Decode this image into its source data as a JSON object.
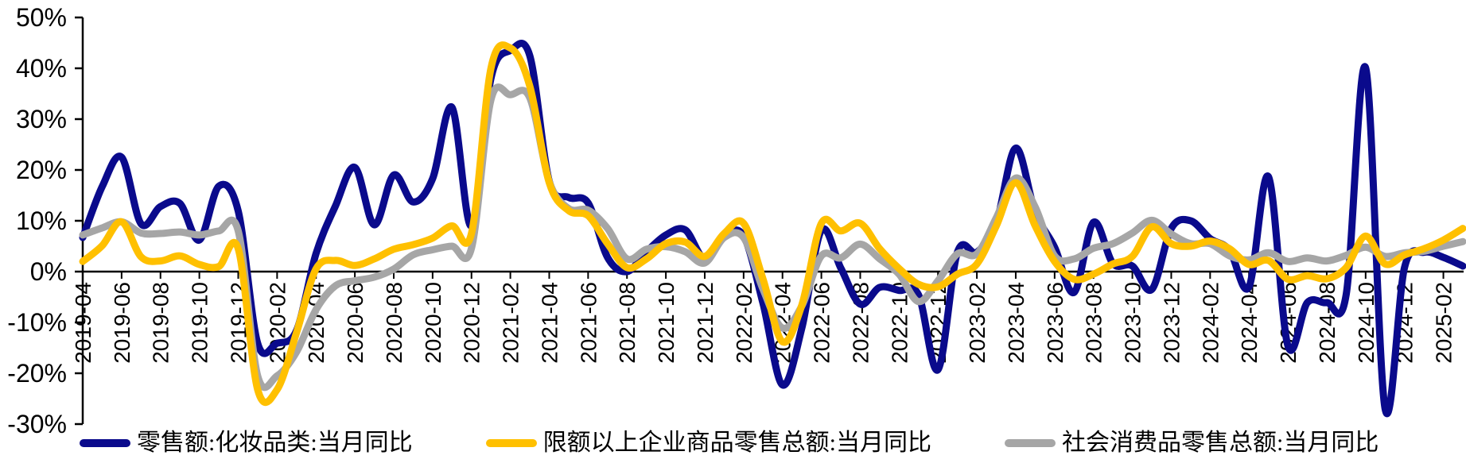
{
  "chart_data": {
    "type": "line",
    "smooth": true,
    "grid": false,
    "background_color": "#FFFFFF",
    "axis_color": "#000000",
    "legend_position": "bottom",
    "ylim": [
      -30,
      50
    ],
    "y_tick_values": [
      50,
      40,
      30,
      20,
      10,
      0,
      -10,
      -20,
      -30
    ],
    "y_tick_labels": [
      "50%",
      "40%",
      "30%",
      "20%",
      "10%",
      "0%",
      "-10%",
      "-20%",
      "-30%"
    ],
    "x": [
      "2019-04",
      "2019-05",
      "2019-06",
      "2019-07",
      "2019-08",
      "2019-09",
      "2019-10",
      "2019-11",
      "2019-12",
      "2020-01",
      "2020-02",
      "2020-03",
      "2020-04",
      "2020-05",
      "2020-06",
      "2020-07",
      "2020-08",
      "2020-09",
      "2020-10",
      "2020-11",
      "2020-12",
      "2021-01",
      "2021-02",
      "2021-03",
      "2021-04",
      "2021-05",
      "2021-06",
      "2021-07",
      "2021-08",
      "2021-09",
      "2021-10",
      "2021-11",
      "2021-12",
      "2022-01",
      "2022-02",
      "2022-03",
      "2022-04",
      "2022-05",
      "2022-06",
      "2022-07",
      "2022-08",
      "2022-09",
      "2022-10",
      "2022-11",
      "2022-12",
      "2023-01",
      "2023-02",
      "2023-03",
      "2023-04",
      "2023-05",
      "2023-06",
      "2023-07",
      "2023-08",
      "2023-09",
      "2023-10",
      "2023-11",
      "2023-12",
      "2024-01",
      "2024-02",
      "2024-03",
      "2024-04",
      "2024-05",
      "2024-06",
      "2024-07",
      "2024-08",
      "2024-09",
      "2024-10",
      "2024-11",
      "2024-12",
      "2025-01",
      "2025-02",
      "2025-03"
    ],
    "x_tick_labels": [
      "2019-04",
      "2019-06",
      "2019-08",
      "2019-10",
      "2019-12",
      "2020-02",
      "2020-04",
      "2020-06",
      "2020-08",
      "2020-10",
      "2020-12",
      "2021-02",
      "2021-04",
      "2021-06",
      "2021-08",
      "2021-10",
      "2021-12",
      "2022-02",
      "2022-04",
      "2022-06",
      "2022-08",
      "2022-10",
      "2022-12",
      "2023-02",
      "2023-04",
      "2023-06",
      "2023-08",
      "2023-10",
      "2023-12",
      "2024-02",
      "2024-04",
      "2024-06",
      "2024-08",
      "2024-10",
      "2024-12",
      "2025-02"
    ],
    "series": [
      {
        "name": "零售额:化妆品类:当月同比",
        "color": "#0A0A8C",
        "values": [
          6.7,
          16.7,
          22.5,
          9.4,
          12.8,
          13.4,
          6.2,
          16.8,
          11.9,
          -14.1,
          -14.1,
          -11.6,
          3.5,
          12.9,
          20.5,
          9.2,
          19.0,
          13.7,
          18.3,
          32.3,
          9.0,
          38.0,
          43.5,
          42.5,
          17.8,
          14.6,
          13.5,
          2.8,
          0.0,
          3.9,
          7.2,
          8.2,
          2.5,
          7.0,
          7.0,
          -6.3,
          -22.3,
          -11.0,
          8.1,
          0.7,
          -6.4,
          -3.1,
          -3.7,
          -4.6,
          -19.3,
          3.8,
          3.8,
          9.6,
          24.3,
          11.7,
          4.8,
          -4.1,
          9.7,
          1.6,
          1.1,
          -3.5,
          8.5,
          10.0,
          6.5,
          4.2,
          -3.0,
          18.7,
          -14.6,
          -6.1,
          -6.1,
          -4.5,
          40.1,
          -27.0,
          0.8,
          3.8,
          2.8,
          1.1
        ]
      },
      {
        "name": "限额以上企业商品零售总额:当月同比",
        "color": "#FFC000",
        "values": [
          2.0,
          5.1,
          9.8,
          2.9,
          2.1,
          3.1,
          1.4,
          1.0,
          4.5,
          -23.2,
          -23.2,
          -12.0,
          0.5,
          2.2,
          1.2,
          2.5,
          4.4,
          5.3,
          6.6,
          9.0,
          7.5,
          40.0,
          44.0,
          36.5,
          17.5,
          12.0,
          11.0,
          5.5,
          0.8,
          2.5,
          5.5,
          5.8,
          3.0,
          7.5,
          9.5,
          -1.5,
          -13.8,
          -6.5,
          9.5,
          8.0,
          9.5,
          4.5,
          0.6,
          -2.5,
          -3.0,
          -0.5,
          1.5,
          9.0,
          17.5,
          9.0,
          2.0,
          -1.5,
          -0.5,
          1.5,
          3.0,
          8.8,
          5.5,
          5.0,
          6.0,
          4.5,
          1.4,
          2.2,
          -1.5,
          -0.8,
          -1.4,
          0.8,
          7.0,
          1.5,
          3.3,
          4.5,
          6.2,
          8.5
        ]
      },
      {
        "name": "社会消费品零售总额:当月同比",
        "color": "#A6A6A6",
        "values": [
          7.2,
          8.6,
          9.8,
          7.6,
          7.5,
          7.8,
          7.2,
          8.0,
          8.0,
          -20.5,
          -20.5,
          -15.8,
          -7.5,
          -2.8,
          -1.8,
          -1.1,
          0.5,
          3.3,
          4.3,
          5.0,
          4.6,
          33.8,
          34.8,
          34.2,
          17.7,
          12.4,
          12.1,
          8.5,
          2.5,
          4.4,
          4.9,
          3.9,
          1.7,
          6.7,
          6.7,
          -3.5,
          -11.1,
          -6.7,
          3.1,
          2.7,
          5.4,
          2.5,
          -0.5,
          -5.9,
          -1.8,
          3.5,
          3.5,
          10.6,
          18.4,
          12.7,
          3.1,
          2.5,
          4.6,
          5.5,
          7.6,
          10.1,
          7.4,
          5.5,
          5.5,
          3.1,
          2.3,
          3.7,
          2.0,
          2.7,
          2.1,
          3.2,
          4.8,
          3.0,
          3.7,
          4.0,
          5.0,
          5.9
        ]
      }
    ]
  }
}
